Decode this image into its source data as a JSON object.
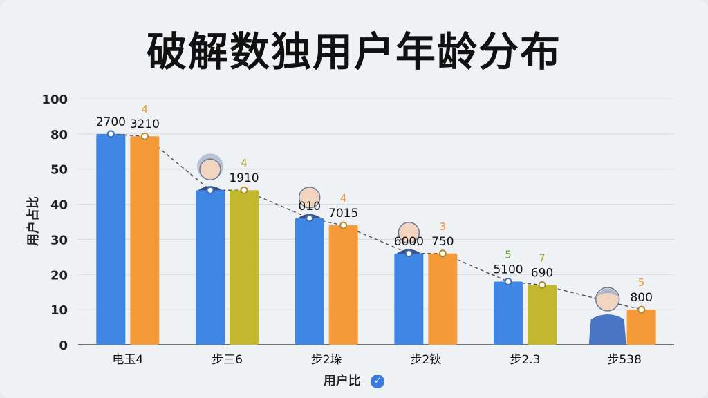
{
  "title": "破解数独用户年龄分布",
  "chart_data": {
    "type": "bar",
    "xlabel": "用户比",
    "ylabel": "用户占比",
    "y_ticks": [
      "0",
      "10",
      "20",
      "30",
      "40",
      "50",
      "80",
      "100"
    ],
    "grid": true,
    "categories": [
      "电玉4",
      "步三6",
      "步2垛",
      "步2钬",
      "步2.3",
      "步538"
    ],
    "series": [
      {
        "color": "#3f86e4",
        "values": [
          80,
          44,
          36,
          26,
          18,
          null
        ],
        "value_labels": [
          "2700",
          "",
          "010",
          "6000",
          "5100",
          ""
        ],
        "small_labels": [
          "",
          "",
          "",
          "",
          "5",
          ""
        ]
      },
      {
        "color": "#f59a38",
        "alt_color": "#c2b82e",
        "colors": [
          "#f59a38",
          "#c2b82e",
          "#f59a38",
          "#f59a38",
          "#c2b82e",
          "#f59a38"
        ],
        "values": [
          78,
          44,
          34,
          26,
          17,
          10
        ],
        "value_labels": [
          "3210",
          "1910",
          "7015",
          "750",
          "690",
          "800"
        ],
        "small_labels": [
          "4",
          "4",
          "4",
          "3",
          "7",
          "5"
        ]
      }
    ],
    "trend_line": true,
    "icons": [
      "",
      "grandma-avatar-icon",
      "man-avatar-icon",
      "bald-man-avatar-icon",
      "",
      "boy-avatar-icon"
    ]
  }
}
